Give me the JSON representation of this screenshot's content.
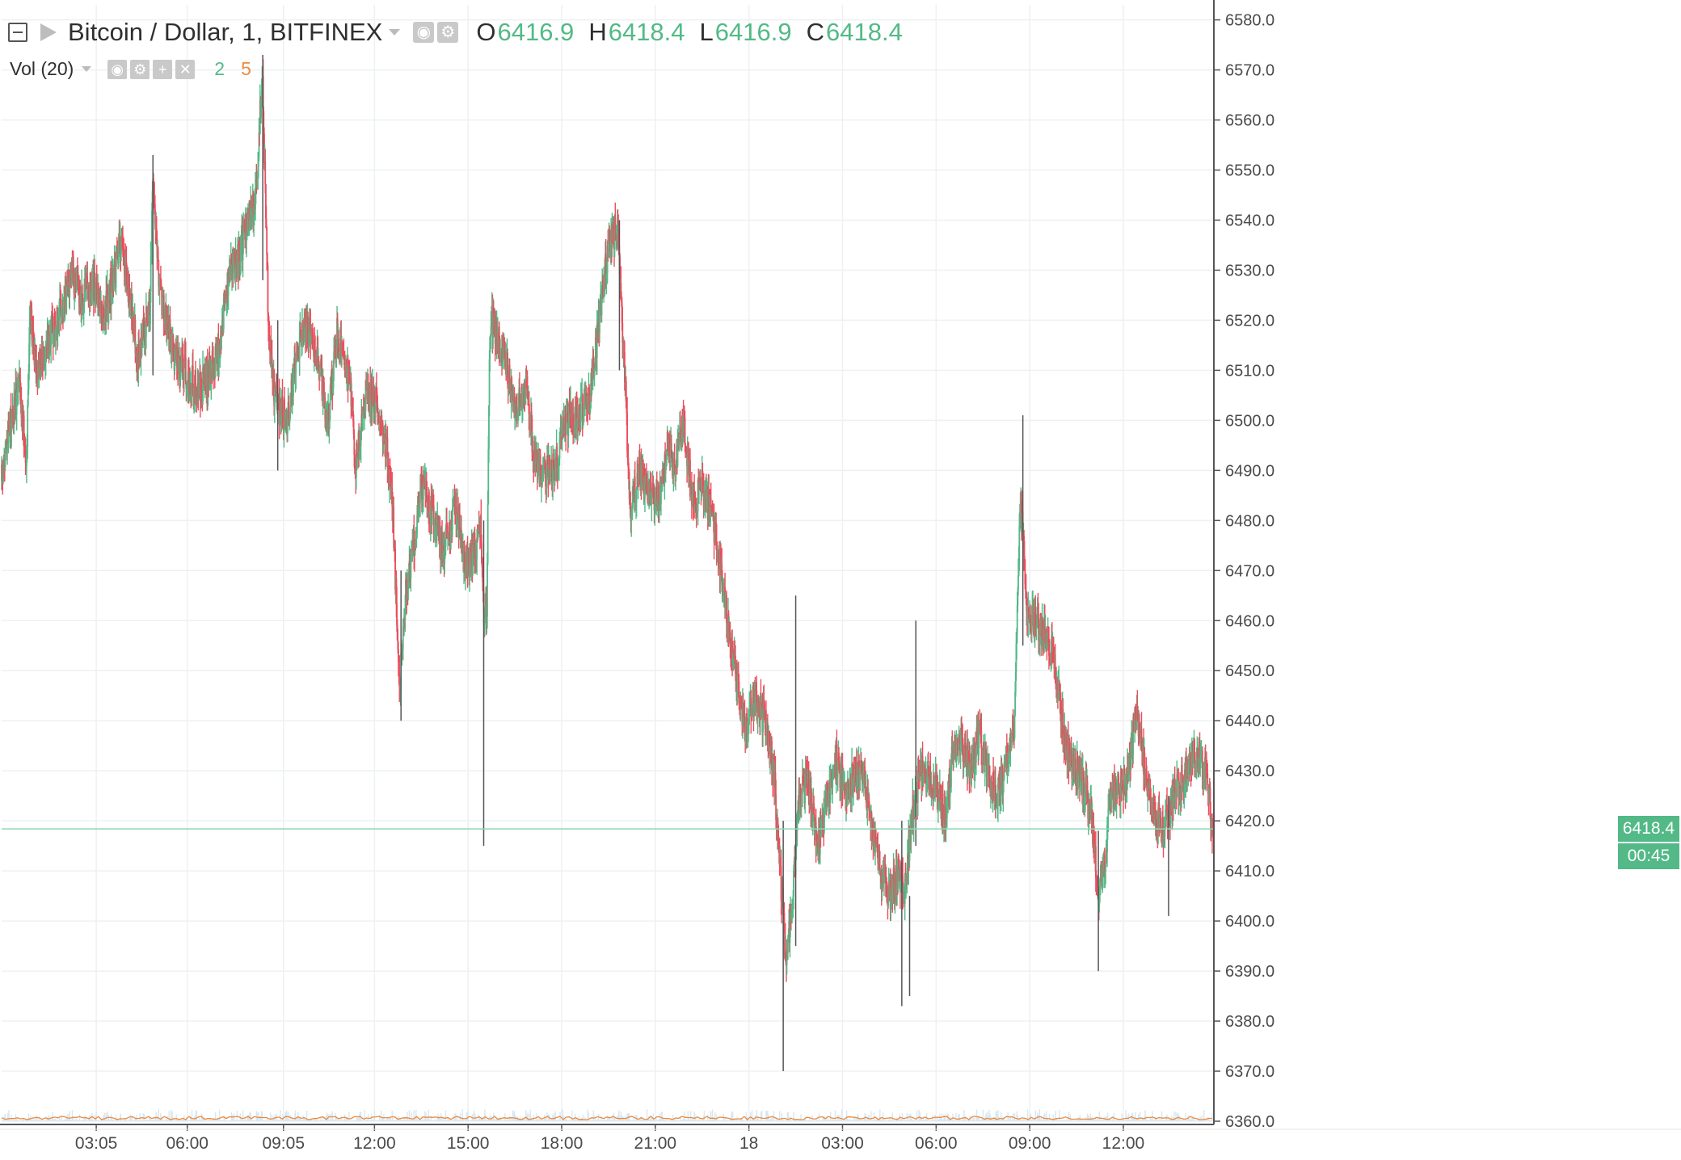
{
  "legend": {
    "symbol": "Bitcoin / Dollar, 1, BITFINEX",
    "o_label": "O",
    "o_value": "6416.9",
    "h_label": "H",
    "h_value": "6418.4",
    "l_label": "L",
    "l_value": "6416.9",
    "c_label": "C",
    "c_value": "6418.4"
  },
  "volume_legend": {
    "label": "Vol (20)",
    "value_a": "2",
    "value_b": "5"
  },
  "price_tag": {
    "price": "6418.4",
    "countdown": "00:45"
  },
  "colors": {
    "up": "#53b987",
    "down": "#eb4d5c",
    "grid": "#eef0f3",
    "axis_text": "#4a4a4a",
    "volume_ma": "#eb8a3e",
    "volume_bar": "#d9e7f0"
  },
  "chart_data": {
    "type": "candlestick",
    "interval": "1 minute",
    "y_range": [
      6360,
      6583
    ],
    "y_ticks": [
      "6580.0",
      "6570.0",
      "6560.0",
      "6550.0",
      "6540.0",
      "6530.0",
      "6520.0",
      "6510.0",
      "6500.0",
      "6490.0",
      "6480.0",
      "6470.0",
      "6460.0",
      "6450.0",
      "6440.0",
      "6430.0",
      "6420.0",
      "6410.0",
      "6400.0",
      "6390.0",
      "6380.0",
      "6370.0",
      "6360.0"
    ],
    "x_ticks": [
      "03:05",
      "06:00",
      "09:05",
      "12:00",
      "15:00",
      "18:00",
      "21:00",
      "18",
      "03:00",
      "06:00",
      "09:00",
      "12:00"
    ],
    "x_tick_hours": [
      3.083,
      6,
      9.083,
      12,
      15,
      18,
      21,
      24,
      27,
      30,
      33,
      36
    ],
    "x_range_hours": [
      0.05,
      38.85
    ],
    "last_price": 6418.4,
    "price_path": [
      [
        0.05,
        6488
      ],
      [
        0.3,
        6498
      ],
      [
        0.6,
        6507
      ],
      [
        0.85,
        6493
      ],
      [
        0.95,
        6521
      ],
      [
        1.2,
        6510
      ],
      [
        1.6,
        6517
      ],
      [
        2.0,
        6522
      ],
      [
        2.3,
        6530
      ],
      [
        2.6,
        6524
      ],
      [
        3.0,
        6527
      ],
      [
        3.3,
        6521
      ],
      [
        3.7,
        6530
      ],
      [
        3.9,
        6536
      ],
      [
        4.2,
        6522
      ],
      [
        4.4,
        6513
      ],
      [
        4.8,
        6522
      ],
      [
        4.9,
        6550
      ],
      [
        5.1,
        6526
      ],
      [
        5.3,
        6520
      ],
      [
        5.6,
        6513
      ],
      [
        5.9,
        6510
      ],
      [
        6.3,
        6506
      ],
      [
        6.7,
        6509
      ],
      [
        7.0,
        6514
      ],
      [
        7.3,
        6528
      ],
      [
        7.6,
        6532
      ],
      [
        7.9,
        6538
      ],
      [
        8.2,
        6545
      ],
      [
        8.4,
        6570
      ],
      [
        8.6,
        6520
      ],
      [
        8.8,
        6504
      ],
      [
        9.2,
        6500
      ],
      [
        9.6,
        6515
      ],
      [
        9.8,
        6519
      ],
      [
        10.2,
        6513
      ],
      [
        10.5,
        6500
      ],
      [
        10.8,
        6517
      ],
      [
        11.2,
        6509
      ],
      [
        11.4,
        6490
      ],
      [
        11.7,
        6505
      ],
      [
        12.1,
        6503
      ],
      [
        12.4,
        6494
      ],
      [
        12.6,
        6480
      ],
      [
        12.8,
        6445
      ],
      [
        13.0,
        6466
      ],
      [
        13.3,
        6477
      ],
      [
        13.5,
        6488
      ],
      [
        13.8,
        6482
      ],
      [
        14.2,
        6474
      ],
      [
        14.6,
        6483
      ],
      [
        14.9,
        6470
      ],
      [
        15.2,
        6474
      ],
      [
        15.4,
        6479
      ],
      [
        15.5,
        6460
      ],
      [
        15.6,
        6463
      ],
      [
        15.7,
        6520
      ],
      [
        15.9,
        6518
      ],
      [
        16.2,
        6512
      ],
      [
        16.5,
        6503
      ],
      [
        16.9,
        6506
      ],
      [
        17.1,
        6493
      ],
      [
        17.4,
        6489
      ],
      [
        17.8,
        6491
      ],
      [
        18.1,
        6500
      ],
      [
        18.5,
        6501
      ],
      [
        18.9,
        6505
      ],
      [
        19.2,
        6520
      ],
      [
        19.5,
        6535
      ],
      [
        19.8,
        6539
      ],
      [
        20.0,
        6512
      ],
      [
        20.2,
        6482
      ],
      [
        20.5,
        6490
      ],
      [
        20.8,
        6485
      ],
      [
        21.1,
        6483
      ],
      [
        21.4,
        6496
      ],
      [
        21.6,
        6490
      ],
      [
        21.9,
        6500
      ],
      [
        22.2,
        6483
      ],
      [
        22.5,
        6487
      ],
      [
        22.8,
        6481
      ],
      [
        23.1,
        6470
      ],
      [
        23.3,
        6460
      ],
      [
        23.6,
        6448
      ],
      [
        23.9,
        6438
      ],
      [
        24.2,
        6445
      ],
      [
        24.5,
        6440
      ],
      [
        24.8,
        6430
      ],
      [
        25.0,
        6410
      ],
      [
        25.2,
        6392
      ],
      [
        25.4,
        6405
      ],
      [
        25.6,
        6425
      ],
      [
        25.9,
        6428
      ],
      [
        26.2,
        6414
      ],
      [
        26.5,
        6425
      ],
      [
        26.8,
        6432
      ],
      [
        27.1,
        6425
      ],
      [
        27.4,
        6430
      ],
      [
        27.7,
        6428
      ],
      [
        27.9,
        6420
      ],
      [
        28.2,
        6410
      ],
      [
        28.5,
        6405
      ],
      [
        28.8,
        6410
      ],
      [
        29.0,
        6405
      ],
      [
        29.2,
        6420
      ],
      [
        29.5,
        6430
      ],
      [
        29.8,
        6428
      ],
      [
        30.1,
        6425
      ],
      [
        30.3,
        6420
      ],
      [
        30.5,
        6432
      ],
      [
        30.8,
        6436
      ],
      [
        31.1,
        6430
      ],
      [
        31.4,
        6438
      ],
      [
        31.7,
        6428
      ],
      [
        32.0,
        6425
      ],
      [
        32.3,
        6432
      ],
      [
        32.5,
        6440
      ],
      [
        32.6,
        6460
      ],
      [
        32.7,
        6485
      ],
      [
        32.9,
        6462
      ],
      [
        33.2,
        6460
      ],
      [
        33.5,
        6457
      ],
      [
        33.8,
        6452
      ],
      [
        34.1,
        6437
      ],
      [
        34.4,
        6430
      ],
      [
        34.7,
        6428
      ],
      [
        35.0,
        6420
      ],
      [
        35.2,
        6405
      ],
      [
        35.4,
        6412
      ],
      [
        35.6,
        6425
      ],
      [
        35.9,
        6426
      ],
      [
        36.2,
        6431
      ],
      [
        36.4,
        6442
      ],
      [
        36.7,
        6430
      ],
      [
        37.0,
        6422
      ],
      [
        37.3,
        6418
      ],
      [
        37.6,
        6425
      ],
      [
        37.9,
        6428
      ],
      [
        38.2,
        6433
      ],
      [
        38.5,
        6432
      ],
      [
        38.7,
        6429
      ],
      [
        38.85,
        6418
      ]
    ],
    "spikes": [
      {
        "x": 4.9,
        "high": 6553,
        "low": 6509
      },
      {
        "x": 8.42,
        "high": 6573,
        "low": 6528
      },
      {
        "x": 8.9,
        "high": 6520,
        "low": 6490
      },
      {
        "x": 12.85,
        "high": 6470,
        "low": 6440
      },
      {
        "x": 15.5,
        "high": 6480,
        "low": 6415
      },
      {
        "x": 19.85,
        "high": 6540,
        "low": 6510
      },
      {
        "x": 25.1,
        "high": 6420,
        "low": 6370
      },
      {
        "x": 25.5,
        "high": 6465,
        "low": 6395
      },
      {
        "x": 28.9,
        "high": 6420,
        "low": 6383
      },
      {
        "x": 29.15,
        "high": 6405,
        "low": 6385
      },
      {
        "x": 29.35,
        "high": 6460,
        "low": 6415
      },
      {
        "x": 32.78,
        "high": 6501,
        "low": 6455
      },
      {
        "x": 35.2,
        "high": 6418,
        "low": 6390
      },
      {
        "x": 37.45,
        "high": 6425,
        "low": 6401
      }
    ]
  }
}
